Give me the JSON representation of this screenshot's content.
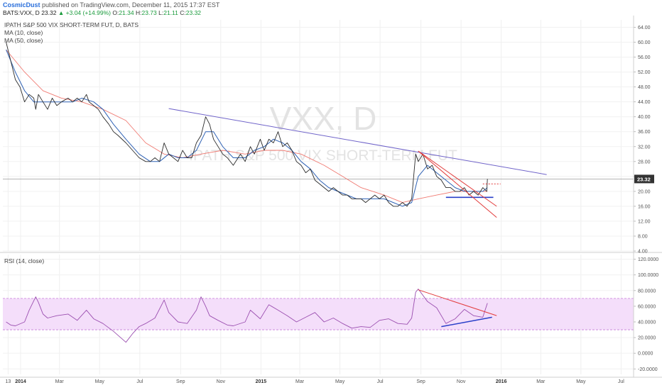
{
  "header": {
    "author": "CosmicDust",
    "published": " published on TradingView.com, December 11, 2015 17:37 EST",
    "symbol_line": "BATS:VXX, D",
    "last": "23.32",
    "change": "+3.04 (+14.99%)",
    "open_label": "O:",
    "open": "21.34",
    "high_label": "H:",
    "high": "23.73",
    "low_label": "L:",
    "low": "21.11",
    "close_label": "C:",
    "close": "23.32"
  },
  "watermark": {
    "ticker": "VXX, D",
    "name": "IPATH S&P 500 VIX SHORT-TERM FUT"
  },
  "price_pane": {
    "title": "IPATH S&P 500 VIX SHORT-TERM FUT, D, BATS",
    "legend": [
      "MA (10, close)",
      "MA (50, close)"
    ],
    "last_price_tag": "23.32"
  },
  "rsi_pane": {
    "title": "RSI (14, close)"
  },
  "colors": {
    "price": "#2b2b2b",
    "ma10": "#2f62b5",
    "ma50": "#f07a72",
    "rsi": "#9b4fb0",
    "band_fill": "#f4defa",
    "band_line": "#c57bd8",
    "resistance": "#6f63c9",
    "support": "#2a3fc9",
    "red_trend": "#e23b3b"
  },
  "chart_data": [
    {
      "type": "line",
      "pane": "price",
      "x_axis": {
        "tick_labels": [
          "13",
          "2014",
          "Mar",
          "May",
          "Jul",
          "Sep",
          "Nov",
          "2015",
          "Mar",
          "May",
          "Jul",
          "Sep",
          "Nov",
          "2016",
          "Mar",
          "May",
          "Jul"
        ],
        "bold_ticks": [
          "2014",
          "2015",
          "2016"
        ]
      },
      "y_axis": {
        "tick_labels": [
          "64.00",
          "60.00",
          "56.00",
          "52.00",
          "48.00",
          "44.00",
          "40.00",
          "36.00",
          "32.00",
          "28.00",
          "24.00",
          "20.00",
          "16.00",
          "12.00",
          "8.00",
          "4.00"
        ],
        "range": [
          4,
          66
        ]
      },
      "series": [
        {
          "key": "price",
          "x": [
            "2013-12-10",
            "2013-12-17",
            "2013-12-24",
            "2013-12-31",
            "2014-01-07",
            "2014-01-14",
            "2014-01-21",
            "2014-01-24",
            "2014-01-28",
            "2014-02-04",
            "2014-02-11",
            "2014-02-18",
            "2014-02-25",
            "2014-03-04",
            "2014-03-14",
            "2014-03-21",
            "2014-03-28",
            "2014-04-04",
            "2014-04-11",
            "2014-04-15",
            "2014-04-22",
            "2014-04-29",
            "2014-05-06",
            "2014-05-15",
            "2014-05-22",
            "2014-05-29",
            "2014-06-10",
            "2014-06-20",
            "2014-06-30",
            "2014-07-10",
            "2014-07-17",
            "2014-07-24",
            "2014-07-31",
            "2014-08-07",
            "2014-08-14",
            "2014-08-21",
            "2014-08-28",
            "2014-09-04",
            "2014-09-11",
            "2014-09-18",
            "2014-09-25",
            "2014-10-02",
            "2014-10-09",
            "2014-10-15",
            "2014-10-21",
            "2014-10-28",
            "2014-11-04",
            "2014-11-11",
            "2014-11-20",
            "2014-12-01",
            "2014-12-08",
            "2014-12-16",
            "2014-12-22",
            "2014-12-31",
            "2015-01-06",
            "2015-01-13",
            "2015-01-20",
            "2015-01-27",
            "2015-02-03",
            "2015-02-10",
            "2015-02-17",
            "2015-02-24",
            "2015-03-03",
            "2015-03-10",
            "2015-03-17",
            "2015-03-24",
            "2015-03-31",
            "2015-04-07",
            "2015-04-14",
            "2015-04-21",
            "2015-04-28",
            "2015-05-05",
            "2015-05-12",
            "2015-05-19",
            "2015-05-26",
            "2015-06-02",
            "2015-06-09",
            "2015-06-16",
            "2015-06-23",
            "2015-06-30",
            "2015-07-07",
            "2015-07-14",
            "2015-07-21",
            "2015-07-28",
            "2015-08-04",
            "2015-08-11",
            "2015-08-18",
            "2015-08-24",
            "2015-08-28",
            "2015-09-04",
            "2015-09-11",
            "2015-09-18",
            "2015-09-25",
            "2015-10-02",
            "2015-10-09",
            "2015-10-16",
            "2015-10-23",
            "2015-10-30",
            "2015-11-06",
            "2015-11-13",
            "2015-11-20",
            "2015-11-27",
            "2015-12-04",
            "2015-12-10",
            "2015-12-11"
          ],
          "y": [
            60,
            55,
            50,
            48,
            44,
            46,
            45,
            42,
            46,
            44,
            42,
            45,
            43,
            44,
            45,
            44,
            45,
            44,
            46,
            44,
            43,
            42,
            40,
            38,
            36,
            35,
            33,
            31,
            29,
            28,
            28,
            29,
            28,
            33,
            30,
            29,
            28,
            31,
            29,
            29,
            33,
            35,
            40,
            38,
            34,
            32,
            30,
            29,
            27,
            30,
            28,
            32,
            30,
            34,
            31,
            34,
            33,
            36,
            32,
            33,
            31,
            28,
            27,
            25,
            26,
            23,
            22,
            21,
            20,
            21,
            20,
            19,
            19,
            18,
            18,
            18,
            17,
            18,
            19,
            18,
            19,
            17,
            16,
            16,
            17,
            16,
            18,
            30,
            28,
            30,
            26,
            27,
            24,
            23,
            21,
            21,
            20,
            20,
            21,
            19,
            20,
            19,
            21,
            20,
            23.32
          ]
        },
        {
          "key": "ma10",
          "x": [
            "2013-12-10",
            "2013-12-24",
            "2014-01-07",
            "2014-01-21",
            "2014-02-04",
            "2014-02-18",
            "2014-03-04",
            "2014-03-21",
            "2014-04-04",
            "2014-04-22",
            "2014-05-06",
            "2014-05-22",
            "2014-06-10",
            "2014-06-30",
            "2014-07-17",
            "2014-07-31",
            "2014-08-14",
            "2014-08-28",
            "2014-09-11",
            "2014-09-25",
            "2014-10-09",
            "2014-10-21",
            "2014-11-04",
            "2014-11-20",
            "2014-12-08",
            "2014-12-22",
            "2015-01-06",
            "2015-01-20",
            "2015-02-03",
            "2015-02-17",
            "2015-03-03",
            "2015-03-17",
            "2015-03-31",
            "2015-04-14",
            "2015-04-28",
            "2015-05-12",
            "2015-05-26",
            "2015-06-09",
            "2015-06-23",
            "2015-07-07",
            "2015-07-21",
            "2015-08-04",
            "2015-08-18",
            "2015-08-28",
            "2015-09-11",
            "2015-09-25",
            "2015-10-09",
            "2015-10-23",
            "2015-11-06",
            "2015-11-20",
            "2015-12-04",
            "2015-12-11"
          ],
          "y": [
            58,
            52,
            47,
            44,
            44,
            44,
            44,
            44,
            45,
            44,
            42,
            38,
            34,
            30,
            28,
            28,
            30,
            29,
            29,
            31,
            36,
            36,
            32,
            29,
            29,
            31,
            32,
            34,
            33,
            31,
            28,
            26,
            23,
            21,
            20,
            19,
            18,
            18,
            18,
            18,
            17,
            16,
            17,
            24,
            27,
            25,
            23,
            21,
            20,
            20,
            20,
            21
          ]
        },
        {
          "key": "ma50",
          "x": [
            "2013-12-10",
            "2014-01-07",
            "2014-02-04",
            "2014-03-04",
            "2014-04-04",
            "2014-05-06",
            "2014-06-10",
            "2014-07-10",
            "2014-08-07",
            "2014-09-04",
            "2014-10-02",
            "2014-11-04",
            "2014-12-08",
            "2015-01-06",
            "2015-02-03",
            "2015-03-03",
            "2015-04-07",
            "2015-05-05",
            "2015-06-02",
            "2015-07-07",
            "2015-08-04",
            "2015-08-28",
            "2015-09-25",
            "2015-10-23",
            "2015-11-20",
            "2015-12-11"
          ],
          "y": [
            58,
            52,
            47,
            45,
            44,
            42,
            39,
            33,
            30,
            29,
            30,
            31,
            30,
            31,
            31,
            30,
            27,
            24,
            21,
            19,
            17,
            18,
            19,
            20,
            20,
            20
          ]
        }
      ],
      "annotations": [
        {
          "type": "trendline",
          "key": "resistance",
          "from": [
            "2014-08-14",
            42.2
          ],
          "to": [
            "2016-03-10",
            24.5
          ]
        },
        {
          "type": "trendline",
          "key": "support",
          "from": [
            "2015-10-09",
            18.4
          ],
          "to": [
            "2015-12-20",
            18.4
          ]
        },
        {
          "type": "trendline",
          "key": "red_trend",
          "from": [
            "2015-08-28",
            30.8
          ],
          "to": [
            "2015-12-25",
            13
          ]
        },
        {
          "type": "trendline",
          "key": "red_trend",
          "from": [
            "2015-08-28",
            30.8
          ],
          "to": [
            "2015-12-25",
            16
          ]
        },
        {
          "type": "hline_dashed",
          "key": "red_trend",
          "from": [
            "2015-12-04",
            22
          ],
          "to": [
            "2015-12-31",
            22
          ]
        }
      ]
    },
    {
      "type": "line",
      "pane": "rsi",
      "y_axis": {
        "tick_labels": [
          "120.0000",
          "100.0000",
          "80.0000",
          "60.0000",
          "40.0000",
          "20.0000",
          "0.0000",
          "-20.0000"
        ],
        "range": [
          -27,
          126
        ]
      },
      "bands": {
        "upper": 70,
        "lower": 30
      },
      "series": [
        {
          "key": "rsi",
          "x": [
            "2013-12-10",
            "2013-12-17",
            "2013-12-24",
            "2014-01-07",
            "2014-01-14",
            "2014-01-24",
            "2014-01-28",
            "2014-02-04",
            "2014-02-11",
            "2014-02-25",
            "2014-03-14",
            "2014-03-28",
            "2014-04-11",
            "2014-04-22",
            "2014-05-06",
            "2014-05-22",
            "2014-06-10",
            "2014-06-20",
            "2014-06-30",
            "2014-07-10",
            "2014-07-24",
            "2014-08-07",
            "2014-08-14",
            "2014-08-28",
            "2014-09-11",
            "2014-09-25",
            "2014-10-02",
            "2014-10-09",
            "2014-10-15",
            "2014-10-28",
            "2014-11-11",
            "2014-11-20",
            "2014-12-08",
            "2014-12-16",
            "2014-12-31",
            "2015-01-13",
            "2015-01-27",
            "2015-02-10",
            "2015-02-24",
            "2015-03-10",
            "2015-03-24",
            "2015-04-07",
            "2015-04-21",
            "2015-05-05",
            "2015-05-19",
            "2015-06-02",
            "2015-06-16",
            "2015-06-30",
            "2015-07-14",
            "2015-07-28",
            "2015-08-11",
            "2015-08-18",
            "2015-08-24",
            "2015-08-28",
            "2015-09-11",
            "2015-09-25",
            "2015-10-09",
            "2015-10-23",
            "2015-11-06",
            "2015-11-20",
            "2015-12-04",
            "2015-12-11"
          ],
          "y": [
            40,
            36,
            35,
            40,
            55,
            72,
            65,
            50,
            45,
            48,
            50,
            42,
            55,
            44,
            38,
            28,
            14,
            25,
            34,
            38,
            45,
            68,
            52,
            40,
            38,
            55,
            72,
            60,
            48,
            42,
            36,
            35,
            40,
            55,
            44,
            62,
            55,
            48,
            40,
            46,
            52,
            40,
            45,
            38,
            32,
            34,
            33,
            42,
            44,
            38,
            37,
            45,
            78,
            82,
            66,
            58,
            38,
            44,
            56,
            48,
            46,
            64
          ]
        }
      ],
      "annotations": [
        {
          "type": "trendline",
          "key": "red_trend",
          "from": [
            "2015-08-28",
            81
          ],
          "to": [
            "2015-12-25",
            48
          ]
        },
        {
          "type": "trendline",
          "key": "support",
          "from": [
            "2015-10-02",
            34
          ],
          "to": [
            "2015-12-18",
            46
          ]
        }
      ]
    }
  ]
}
